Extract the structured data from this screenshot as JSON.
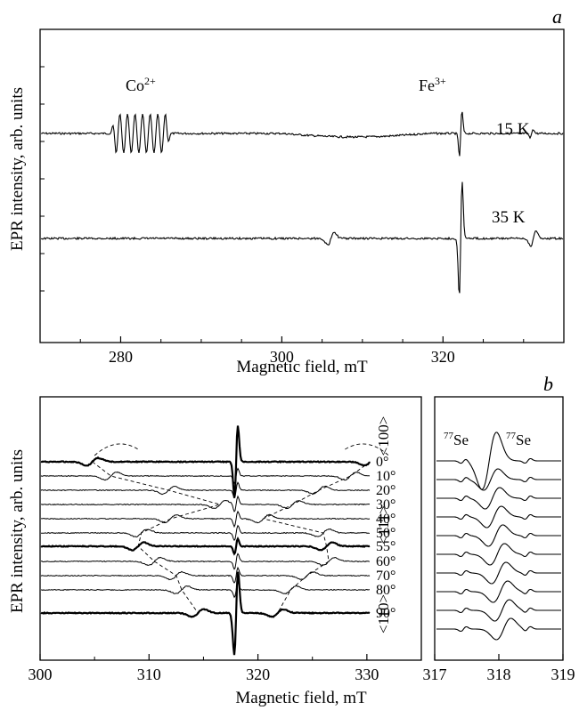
{
  "panel_a": {
    "letter": "a",
    "ylabel": "EPR intensity, arb. units",
    "xlabel": "Magnetic field, mT",
    "xticks": [
      "280",
      "300",
      "320"
    ],
    "co_label_base": "Co",
    "co_label_sup": "2+",
    "fe_label_base": "Fe",
    "fe_label_sup": "3+",
    "temp_labels": [
      "15 K",
      "35 K"
    ]
  },
  "panel_b": {
    "letter": "b",
    "ylabel": "EPR intensity, arb. units",
    "xlabel": "Magnetic field, mT",
    "xticks": [
      "300",
      "310",
      "320",
      "330"
    ],
    "angles": [
      "0°",
      "10°",
      "20°",
      "30°",
      "40°",
      "50°",
      "55°",
      "60°",
      "70°",
      "80°",
      "90°"
    ],
    "directions": [
      "<100>",
      "<111>",
      "<110>"
    ]
  },
  "panel_b_inset": {
    "xticks": [
      "317",
      "318",
      "319"
    ],
    "se_label_sup": "77",
    "se_label_base": "Se"
  },
  "chart_data": [
    {
      "type": "line",
      "panel": "a",
      "xlabel": "Magnetic field, mT",
      "ylabel": "EPR intensity, arb. units",
      "xlim": [
        270,
        335
      ],
      "x_ticks": [
        280,
        300,
        320
      ],
      "series": [
        {
          "name": "15 K",
          "lines": [
            {
              "label": "Co2+ octet",
              "center": 284.2,
              "spacing": 0.78,
              "count": 8
            },
            {
              "label": "Fe3+",
              "center": 322.2
            },
            {
              "center": 331.0
            }
          ]
        },
        {
          "name": "35 K",
          "lines": [
            {
              "center": 306.1
            },
            {
              "label": "Fe3+",
              "center": 322.2
            },
            {
              "center": 331.2
            }
          ]
        }
      ]
    },
    {
      "type": "line",
      "panel": "b",
      "xlabel": "Magnetic field, mT",
      "ylabel": "EPR intensity, arb. units",
      "xlim": [
        300,
        335
      ],
      "x_ticks": [
        300,
        310,
        320,
        330
      ],
      "central_line": 318.0,
      "series": [
        {
          "name": "0°",
          "satellites": [
            304.8,
            330.3
          ]
        },
        {
          "name": "10°",
          "satellites": [
            306.5,
            328.5
          ]
        },
        {
          "name": "20°",
          "satellites": [
            311.8,
            325.6
          ]
        },
        {
          "name": "30°",
          "satellites": [
            316.5,
            323.2
          ]
        },
        {
          "name": "40°",
          "satellites": [
            312.0,
            320.5
          ]
        },
        {
          "name": "50°",
          "satellites": [
            309.3,
            326.0
          ]
        },
        {
          "name": "55°",
          "satellites": [
            309.0,
            326.3
          ]
        },
        {
          "name": "60°",
          "satellites": [
            310.5,
            326.5
          ]
        },
        {
          "name": "70°",
          "satellites": [
            312.5,
            324.5
          ]
        },
        {
          "name": "80°",
          "satellites": [
            313.0,
            323.0
          ]
        },
        {
          "name": "90°",
          "satellites": [
            314.5,
            321.8
          ]
        }
      ]
    },
    {
      "type": "line",
      "panel": "b-inset",
      "xlabel": "Magnetic field, mT",
      "xlim": [
        317,
        319
      ],
      "x_ticks": [
        317,
        318,
        319
      ],
      "satellites": [
        317.45,
        318.45
      ],
      "series_count": 10
    }
  ]
}
